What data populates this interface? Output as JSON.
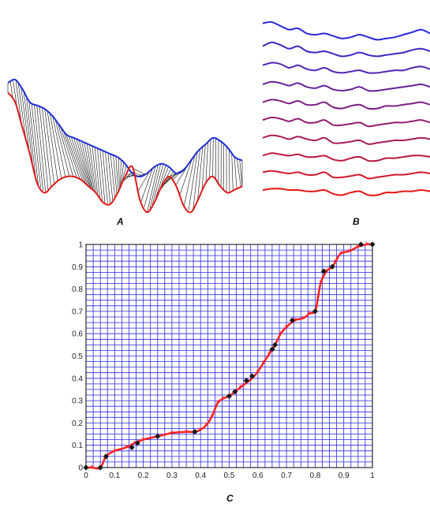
{
  "panels": {
    "a": {
      "label": "A"
    },
    "b": {
      "label": "B"
    },
    "c": {
      "label": "C"
    }
  },
  "colors": {
    "upper_curve": "#1f2fd6",
    "lower_curve": "#e01a1a",
    "connectors": "#111111",
    "grid": "#2a2ae6",
    "warp_path": "#ff2020",
    "markers": "#1a1a1a"
  },
  "chart_data": [
    {
      "type": "line",
      "panel": "A",
      "series": [
        {
          "values": [
            0.78,
            0.8,
            0.74,
            0.66,
            0.64,
            0.62,
            0.58,
            0.52,
            0.46,
            0.44,
            0.42,
            0.4,
            0.38,
            0.36,
            0.34,
            0.32,
            0.28,
            0.22,
            0.2,
            0.22,
            0.26,
            0.28,
            0.26,
            0.22,
            0.24,
            0.3,
            0.36,
            0.4,
            0.44,
            0.42,
            0.38,
            0.32,
            0.3
          ]
        },
        {
          "values": [
            0.72,
            0.66,
            0.5,
            0.34,
            0.16,
            0.1,
            0.14,
            0.18,
            0.2,
            0.2,
            0.18,
            0.14,
            0.1,
            0.04,
            0.03,
            0.1,
            0.2,
            0.26,
            0.06,
            -0.02,
            0.04,
            0.14,
            0.2,
            0.14,
            0.02,
            -0.02,
            0.06,
            0.16,
            0.2,
            0.14,
            0.1,
            0.12,
            0.14
          ]
        }
      ]
    },
    {
      "type": "line",
      "panel": "B",
      "series": [
        {
          "values": [
            0.95,
            1.0,
            0.85,
            0.7,
            0.75,
            0.55,
            0.5,
            0.55,
            0.45,
            0.35,
            0.4,
            0.5,
            0.4,
            0.3,
            0.35,
            0.4,
            0.5,
            0.6,
            0.7,
            0.55
          ]
        },
        {
          "values": [
            0.7,
            0.85,
            0.75,
            0.6,
            0.7,
            0.5,
            0.45,
            0.5,
            0.4,
            0.3,
            0.35,
            0.45,
            0.35,
            0.3,
            0.35,
            0.4,
            0.45,
            0.55,
            0.6,
            0.5
          ]
        },
        {
          "values": [
            0.6,
            0.7,
            0.65,
            0.5,
            0.6,
            0.45,
            0.4,
            0.5,
            0.35,
            0.3,
            0.35,
            0.4,
            0.3,
            0.3,
            0.35,
            0.4,
            0.4,
            0.5,
            0.55,
            0.45
          ]
        },
        {
          "values": [
            0.5,
            0.6,
            0.55,
            0.45,
            0.55,
            0.4,
            0.35,
            0.45,
            0.3,
            0.25,
            0.3,
            0.4,
            0.25,
            0.25,
            0.3,
            0.35,
            0.4,
            0.45,
            0.5,
            0.4
          ]
        },
        {
          "values": [
            0.45,
            0.55,
            0.5,
            0.4,
            0.5,
            0.35,
            0.35,
            0.45,
            0.25,
            0.2,
            0.3,
            0.35,
            0.2,
            0.2,
            0.3,
            0.3,
            0.35,
            0.4,
            0.45,
            0.35
          ]
        },
        {
          "values": [
            0.4,
            0.5,
            0.45,
            0.35,
            0.45,
            0.3,
            0.3,
            0.4,
            0.2,
            0.2,
            0.25,
            0.3,
            0.15,
            0.2,
            0.25,
            0.3,
            0.3,
            0.35,
            0.4,
            0.3
          ]
        },
        {
          "values": [
            0.35,
            0.45,
            0.4,
            0.3,
            0.4,
            0.3,
            0.25,
            0.35,
            0.15,
            0.15,
            0.2,
            0.25,
            0.1,
            0.15,
            0.2,
            0.25,
            0.25,
            0.3,
            0.35,
            0.3
          ]
        },
        {
          "values": [
            0.3,
            0.4,
            0.35,
            0.3,
            0.35,
            0.25,
            0.25,
            0.3,
            0.15,
            0.1,
            0.2,
            0.25,
            0.1,
            0.1,
            0.2,
            0.2,
            0.25,
            0.3,
            0.3,
            0.25
          ]
        },
        {
          "values": [
            0.3,
            0.35,
            0.3,
            0.25,
            0.3,
            0.2,
            0.2,
            0.3,
            0.1,
            0.1,
            0.15,
            0.2,
            0.05,
            0.1,
            0.15,
            0.2,
            0.2,
            0.25,
            0.3,
            0.25
          ]
        },
        {
          "values": [
            0.25,
            0.3,
            0.3,
            0.25,
            0.25,
            0.2,
            0.2,
            0.25,
            0.1,
            0.05,
            0.15,
            0.2,
            0.05,
            0.05,
            0.15,
            0.15,
            0.2,
            0.2,
            0.25,
            0.2
          ]
        }
      ]
    },
    {
      "type": "line",
      "panel": "C",
      "xlim": [
        0,
        1
      ],
      "ylim": [
        0,
        1
      ],
      "xticks": [
        "0",
        "0.1",
        "0.2",
        "0.3",
        "0.4",
        "0.5",
        "0.6",
        "0.7",
        "0.8",
        "0.9",
        "1"
      ],
      "yticks": [
        "0",
        "0.1",
        "0.2",
        "0.3",
        "0.4",
        "0.5",
        "0.6",
        "0.7",
        "0.8",
        "0.9",
        "1"
      ],
      "grid": true,
      "grid_divisions": 40,
      "series": [
        {
          "x": [
            0.0,
            0.02,
            0.05,
            0.07,
            0.1,
            0.14,
            0.17,
            0.2,
            0.25,
            0.3,
            0.35,
            0.38,
            0.4,
            0.42,
            0.44,
            0.46,
            0.48,
            0.5,
            0.52,
            0.54,
            0.56,
            0.58,
            0.6,
            0.62,
            0.64,
            0.66,
            0.68,
            0.7,
            0.73,
            0.76,
            0.78,
            0.8,
            0.81,
            0.82,
            0.84,
            0.86,
            0.87,
            0.89,
            0.92,
            0.95,
            0.98,
            1.0
          ],
          "y": [
            0.0,
            0.0,
            0.0,
            0.05,
            0.075,
            0.09,
            0.11,
            0.125,
            0.14,
            0.155,
            0.16,
            0.16,
            0.17,
            0.19,
            0.23,
            0.29,
            0.31,
            0.32,
            0.34,
            0.36,
            0.38,
            0.4,
            0.43,
            0.47,
            0.51,
            0.55,
            0.6,
            0.63,
            0.66,
            0.67,
            0.69,
            0.7,
            0.76,
            0.83,
            0.88,
            0.9,
            0.92,
            0.96,
            0.97,
            0.99,
            1.0,
            1.0
          ]
        },
        {
          "x": [
            0.0,
            0.05,
            0.07,
            0.16,
            0.18,
            0.25,
            0.38,
            0.5,
            0.52,
            0.56,
            0.58,
            0.65,
            0.66,
            0.72,
            0.8,
            0.83,
            0.86,
            0.96,
            1.0
          ],
          "y": [
            0.0,
            0.0,
            0.05,
            0.09,
            0.11,
            0.14,
            0.16,
            0.32,
            0.34,
            0.39,
            0.41,
            0.53,
            0.55,
            0.66,
            0.7,
            0.88,
            0.9,
            1.0,
            1.0
          ]
        }
      ]
    }
  ]
}
